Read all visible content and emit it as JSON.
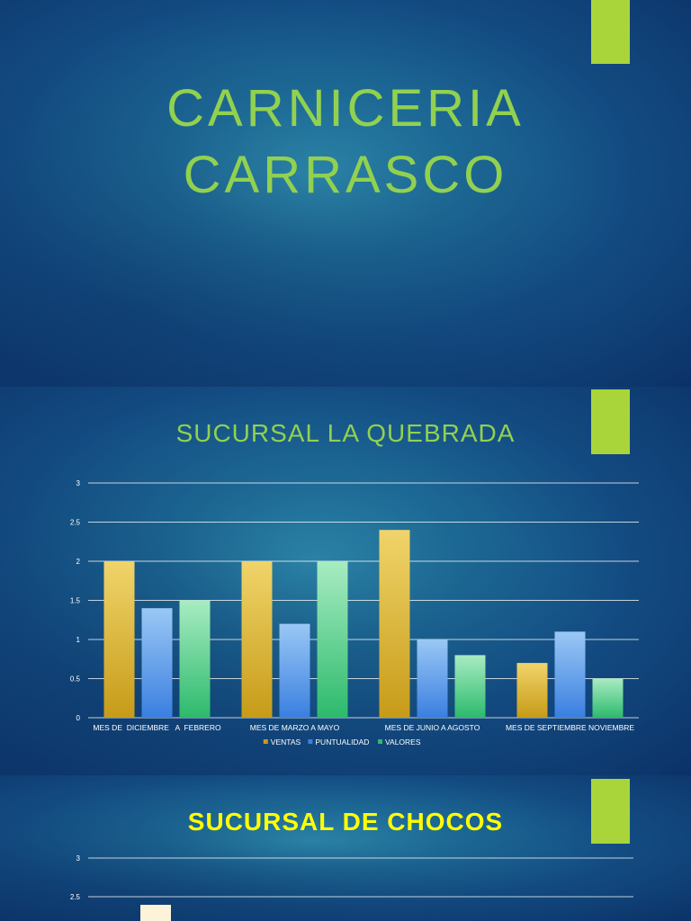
{
  "slide1": {
    "title_line1": "CARNICERIA",
    "title_line2": "CARRASCO",
    "accent_color": "#a9d53a"
  },
  "chart_data": [
    {
      "type": "bar",
      "title": "SUCURSAL LA QUEBRADA",
      "categories": [
        "MES DE  DICIEMBRE   A  FEBRERO",
        "MES DE MARZO A MAYO",
        "MES DE JUNIO A AGOSTO",
        "MES DE SEPTIEMBRE NOVIEMBRE"
      ],
      "series": [
        {
          "name": "VENTAS",
          "values": [
            2,
            2,
            2.4,
            0.7
          ],
          "color_top": "#f0d46a",
          "color_bottom": "#c79b18"
        },
        {
          "name": "PUNTUALIDAD",
          "values": [
            1.4,
            1.2,
            1.0,
            1.1
          ],
          "color_top": "#9ac8f5",
          "color_bottom": "#3a7fe0"
        },
        {
          "name": "VALORES",
          "values": [
            1.5,
            2,
            0.8,
            0.5
          ],
          "color_top": "#a8ecc2",
          "color_bottom": "#2cba6c"
        }
      ],
      "yticks": [
        "0",
        "0.5",
        "1",
        "1.5",
        "2",
        "2.5",
        "3"
      ],
      "ylim": [
        0,
        3
      ],
      "grid": true,
      "legend": "bottom"
    },
    {
      "type": "bar",
      "title": "SUCURSAL DE CHOCOS",
      "yticks": [
        "2.5",
        "3"
      ],
      "ylim": [
        0,
        3
      ],
      "grid": true,
      "first_bar_visible_color": "#fdf3d8"
    }
  ]
}
